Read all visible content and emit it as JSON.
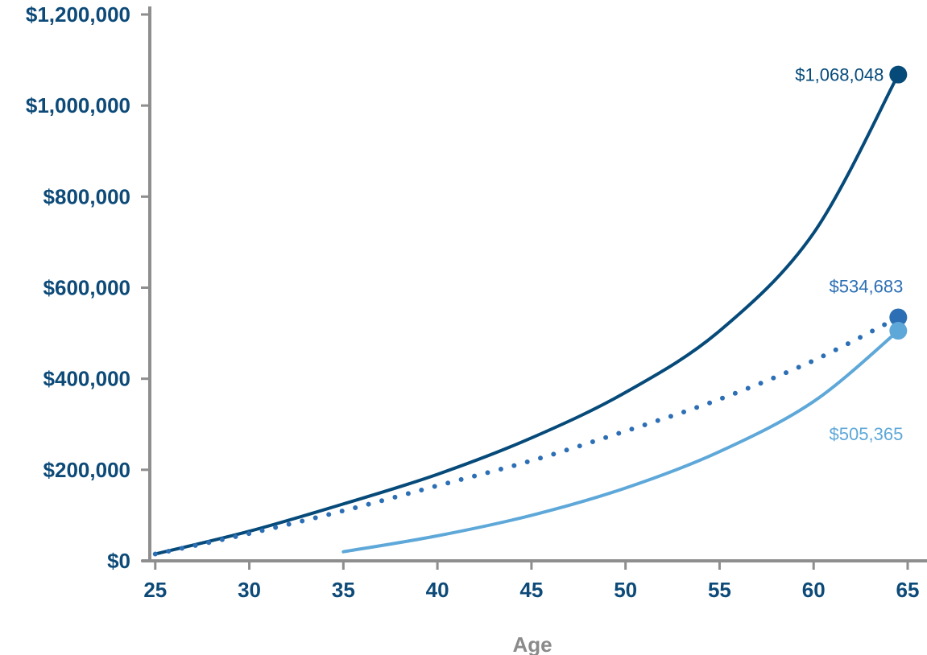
{
  "colors": {
    "axis": "#8e8e8e",
    "tick_text": "#0d4a78",
    "axis_title": "#8a8a8a",
    "series_dark": "#064a7a",
    "series_mid": "#2c6fb5",
    "series_light": "#5ea8d9"
  },
  "chart_data": {
    "type": "line",
    "title": "",
    "xlabel": "Age",
    "ylabel": "",
    "xlim": [
      20,
      65
    ],
    "ylim": [
      0,
      1200000
    ],
    "x_ticks": [
      25,
      30,
      35,
      40,
      45,
      50,
      55,
      60,
      65
    ],
    "x_tick_labels": [
      "25",
      "30",
      "35",
      "40",
      "45",
      "50",
      "55",
      "60",
      "65"
    ],
    "y_ticks": [
      0,
      200000,
      400000,
      600000,
      800000,
      1000000,
      1200000
    ],
    "y_tick_labels": [
      "$0",
      "$200,000",
      "$400,000",
      "$600,000",
      "$800,000",
      "$1,000,000",
      "$1,200,000"
    ],
    "grid": false,
    "legend": "none",
    "series": [
      {
        "style": "solid",
        "color": "#064a7a",
        "x": [
          25,
          30,
          35,
          40,
          45,
          50,
          55,
          60,
          64.5
        ],
        "y": [
          15000,
          65000,
          125000,
          190000,
          270000,
          370000,
          505000,
          720000,
          1068048
        ],
        "end_label": "$1,068,048"
      },
      {
        "style": "dotted",
        "color": "#2c6fb5",
        "x": [
          25,
          30,
          35,
          40,
          45,
          50,
          55,
          60,
          64.5
        ],
        "y": [
          15000,
          60000,
          110000,
          165000,
          220000,
          285000,
          355000,
          440000,
          534683
        ],
        "end_label": "$534,683"
      },
      {
        "style": "solid",
        "color": "#5ea8d9",
        "x": [
          35,
          40,
          45,
          50,
          55,
          60,
          64.5
        ],
        "y": [
          20000,
          55000,
          100000,
          160000,
          240000,
          350000,
          505365
        ],
        "end_label": "$505,365"
      }
    ]
  }
}
